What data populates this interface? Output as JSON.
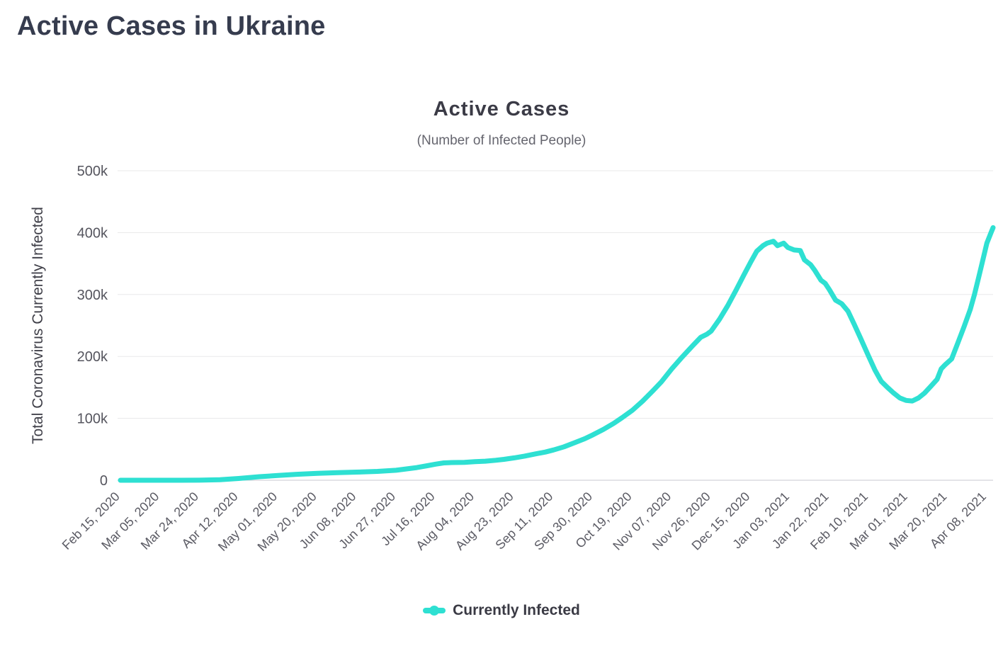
{
  "header": {
    "title": "Active Cases in Ukraine"
  },
  "chart_data": {
    "type": "line",
    "title": "Active Cases",
    "subtitle": "(Number of Infected People)",
    "ylabel": "Total Coronavirus Currently Infected",
    "xlabel": "",
    "grid": "horizontal",
    "legend_position": "bottom",
    "ylim": [
      0,
      500000
    ],
    "yticks": [
      0,
      100000,
      200000,
      300000,
      400000,
      500000
    ],
    "ytick_labels": [
      "0",
      "100k",
      "200k",
      "300k",
      "400k",
      "500k"
    ],
    "x_start_date": "2020-02-15",
    "tick_interval_days": 19,
    "xlim_days": [
      0,
      421
    ],
    "xtick_labels": [
      "Feb 15, 2020",
      "Mar 05, 2020",
      "Mar 24, 2020",
      "Apr 12, 2020",
      "May 01, 2020",
      "May 20, 2020",
      "Jun 08, 2020",
      "Jun 27, 2020",
      "Jul 16, 2020",
      "Aug 04, 2020",
      "Aug 23, 2020",
      "Sep 11, 2020",
      "Sep 30, 2020",
      "Oct 19, 2020",
      "Nov 07, 2020",
      "Nov 26, 2020",
      "Dec 15, 2020",
      "Jan 03, 2021",
      "Jan 22, 2021",
      "Feb 10, 2021",
      "Mar 01, 2021",
      "Mar 20, 2021",
      "Apr 08, 2021"
    ],
    "series": [
      {
        "name": "Currently Infected",
        "color": "#2ee0d2",
        "points": [
          [
            "2020-02-15",
            0
          ],
          [
            "2020-02-24",
            0
          ],
          [
            "2020-03-05",
            1
          ],
          [
            "2020-03-14",
            3
          ],
          [
            "2020-03-24",
            170
          ],
          [
            "2020-04-03",
            900
          ],
          [
            "2020-04-12",
            2900
          ],
          [
            "2020-04-22",
            5700
          ],
          [
            "2020-05-01",
            7700
          ],
          [
            "2020-05-10",
            9600
          ],
          [
            "2020-05-20",
            11200
          ],
          [
            "2020-05-30",
            12300
          ],
          [
            "2020-06-08",
            13200
          ],
          [
            "2020-06-18",
            14300
          ],
          [
            "2020-06-27",
            16100
          ],
          [
            "2020-07-07",
            20500
          ],
          [
            "2020-07-12",
            23500
          ],
          [
            "2020-07-16",
            26000
          ],
          [
            "2020-07-20",
            28000
          ],
          [
            "2020-07-24",
            28600
          ],
          [
            "2020-07-30",
            28900
          ],
          [
            "2020-08-04",
            30000
          ],
          [
            "2020-08-09",
            30800
          ],
          [
            "2020-08-14",
            32300
          ],
          [
            "2020-08-18",
            33800
          ],
          [
            "2020-08-23",
            36200
          ],
          [
            "2020-08-28",
            39000
          ],
          [
            "2020-09-02",
            42500
          ],
          [
            "2020-09-07",
            45500
          ],
          [
            "2020-09-11",
            49000
          ],
          [
            "2020-09-16",
            54000
          ],
          [
            "2020-09-21",
            60500
          ],
          [
            "2020-09-26",
            67000
          ],
          [
            "2020-09-30",
            73500
          ],
          [
            "2020-10-05",
            82000
          ],
          [
            "2020-10-10",
            92000
          ],
          [
            "2020-10-14",
            101000
          ],
          [
            "2020-10-19",
            113000
          ],
          [
            "2020-10-24",
            128000
          ],
          [
            "2020-10-29",
            145000
          ],
          [
            "2020-11-02",
            159000
          ],
          [
            "2020-11-07",
            180000
          ],
          [
            "2020-11-12",
            199000
          ],
          [
            "2020-11-17",
            217000
          ],
          [
            "2020-11-21",
            231000
          ],
          [
            "2020-11-24",
            236000
          ],
          [
            "2020-11-26",
            241000
          ],
          [
            "2020-11-30",
            260000
          ],
          [
            "2020-12-04",
            282000
          ],
          [
            "2020-12-08",
            307000
          ],
          [
            "2020-12-12",
            333000
          ],
          [
            "2020-12-15",
            352000
          ],
          [
            "2020-12-18",
            370000
          ],
          [
            "2020-12-21",
            379000
          ],
          [
            "2020-12-23",
            383000
          ],
          [
            "2020-12-26",
            386000
          ],
          [
            "2020-12-28",
            379000
          ],
          [
            "2020-12-31",
            383000
          ],
          [
            "2021-01-02",
            376000
          ],
          [
            "2021-01-05",
            372000
          ],
          [
            "2021-01-08",
            371000
          ],
          [
            "2021-01-10",
            356000
          ],
          [
            "2021-01-13",
            348000
          ],
          [
            "2021-01-15",
            339000
          ],
          [
            "2021-01-18",
            323000
          ],
          [
            "2021-01-20",
            318000
          ],
          [
            "2021-01-22",
            308000
          ],
          [
            "2021-01-25",
            291000
          ],
          [
            "2021-01-28",
            285000
          ],
          [
            "2021-01-31",
            273000
          ],
          [
            "2021-02-03",
            252000
          ],
          [
            "2021-02-06",
            230000
          ],
          [
            "2021-02-10",
            200000
          ],
          [
            "2021-02-13",
            178000
          ],
          [
            "2021-02-16",
            160000
          ],
          [
            "2021-02-19",
            150000
          ],
          [
            "2021-02-22",
            141000
          ],
          [
            "2021-02-25",
            133000
          ],
          [
            "2021-02-28",
            129000
          ],
          [
            "2021-03-03",
            128000
          ],
          [
            "2021-03-06",
            133000
          ],
          [
            "2021-03-09",
            141000
          ],
          [
            "2021-03-12",
            152000
          ],
          [
            "2021-03-15",
            163000
          ],
          [
            "2021-03-17",
            180000
          ],
          [
            "2021-03-19",
            187000
          ],
          [
            "2021-03-22",
            196000
          ],
          [
            "2021-03-25",
            222000
          ],
          [
            "2021-03-28",
            248000
          ],
          [
            "2021-03-31",
            276000
          ],
          [
            "2021-04-02",
            300000
          ],
          [
            "2021-04-04",
            327000
          ],
          [
            "2021-04-06",
            355000
          ],
          [
            "2021-04-08",
            383000
          ],
          [
            "2021-04-10",
            400000
          ],
          [
            "2021-04-11",
            408000
          ]
        ]
      }
    ]
  }
}
